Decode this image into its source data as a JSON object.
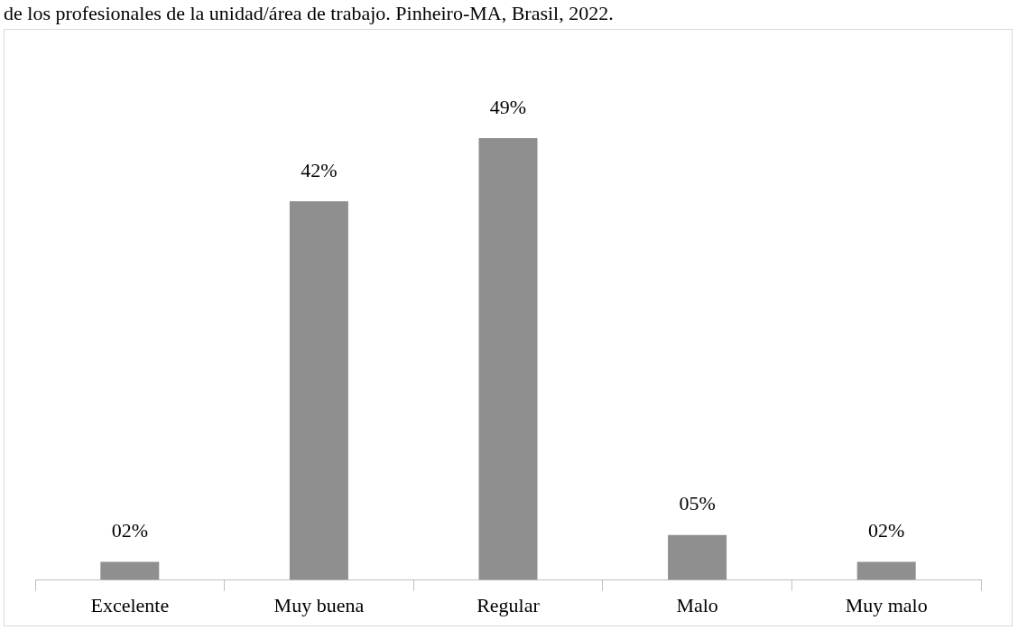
{
  "chart_data": {
    "type": "bar",
    "title": "de los profesionales de la unidad/área de trabajo. Pinheiro-MA, Brasil, 2022.",
    "categories": [
      "Excelente",
      "Muy buena",
      "Regular",
      "Malo",
      "Muy malo"
    ],
    "values": [
      2,
      42,
      49,
      5,
      2
    ],
    "value_labels": [
      "02%",
      "42%",
      "49%",
      "05%",
      "02%"
    ],
    "color": "#8f8f8f",
    "grid": false,
    "legend": false
  }
}
